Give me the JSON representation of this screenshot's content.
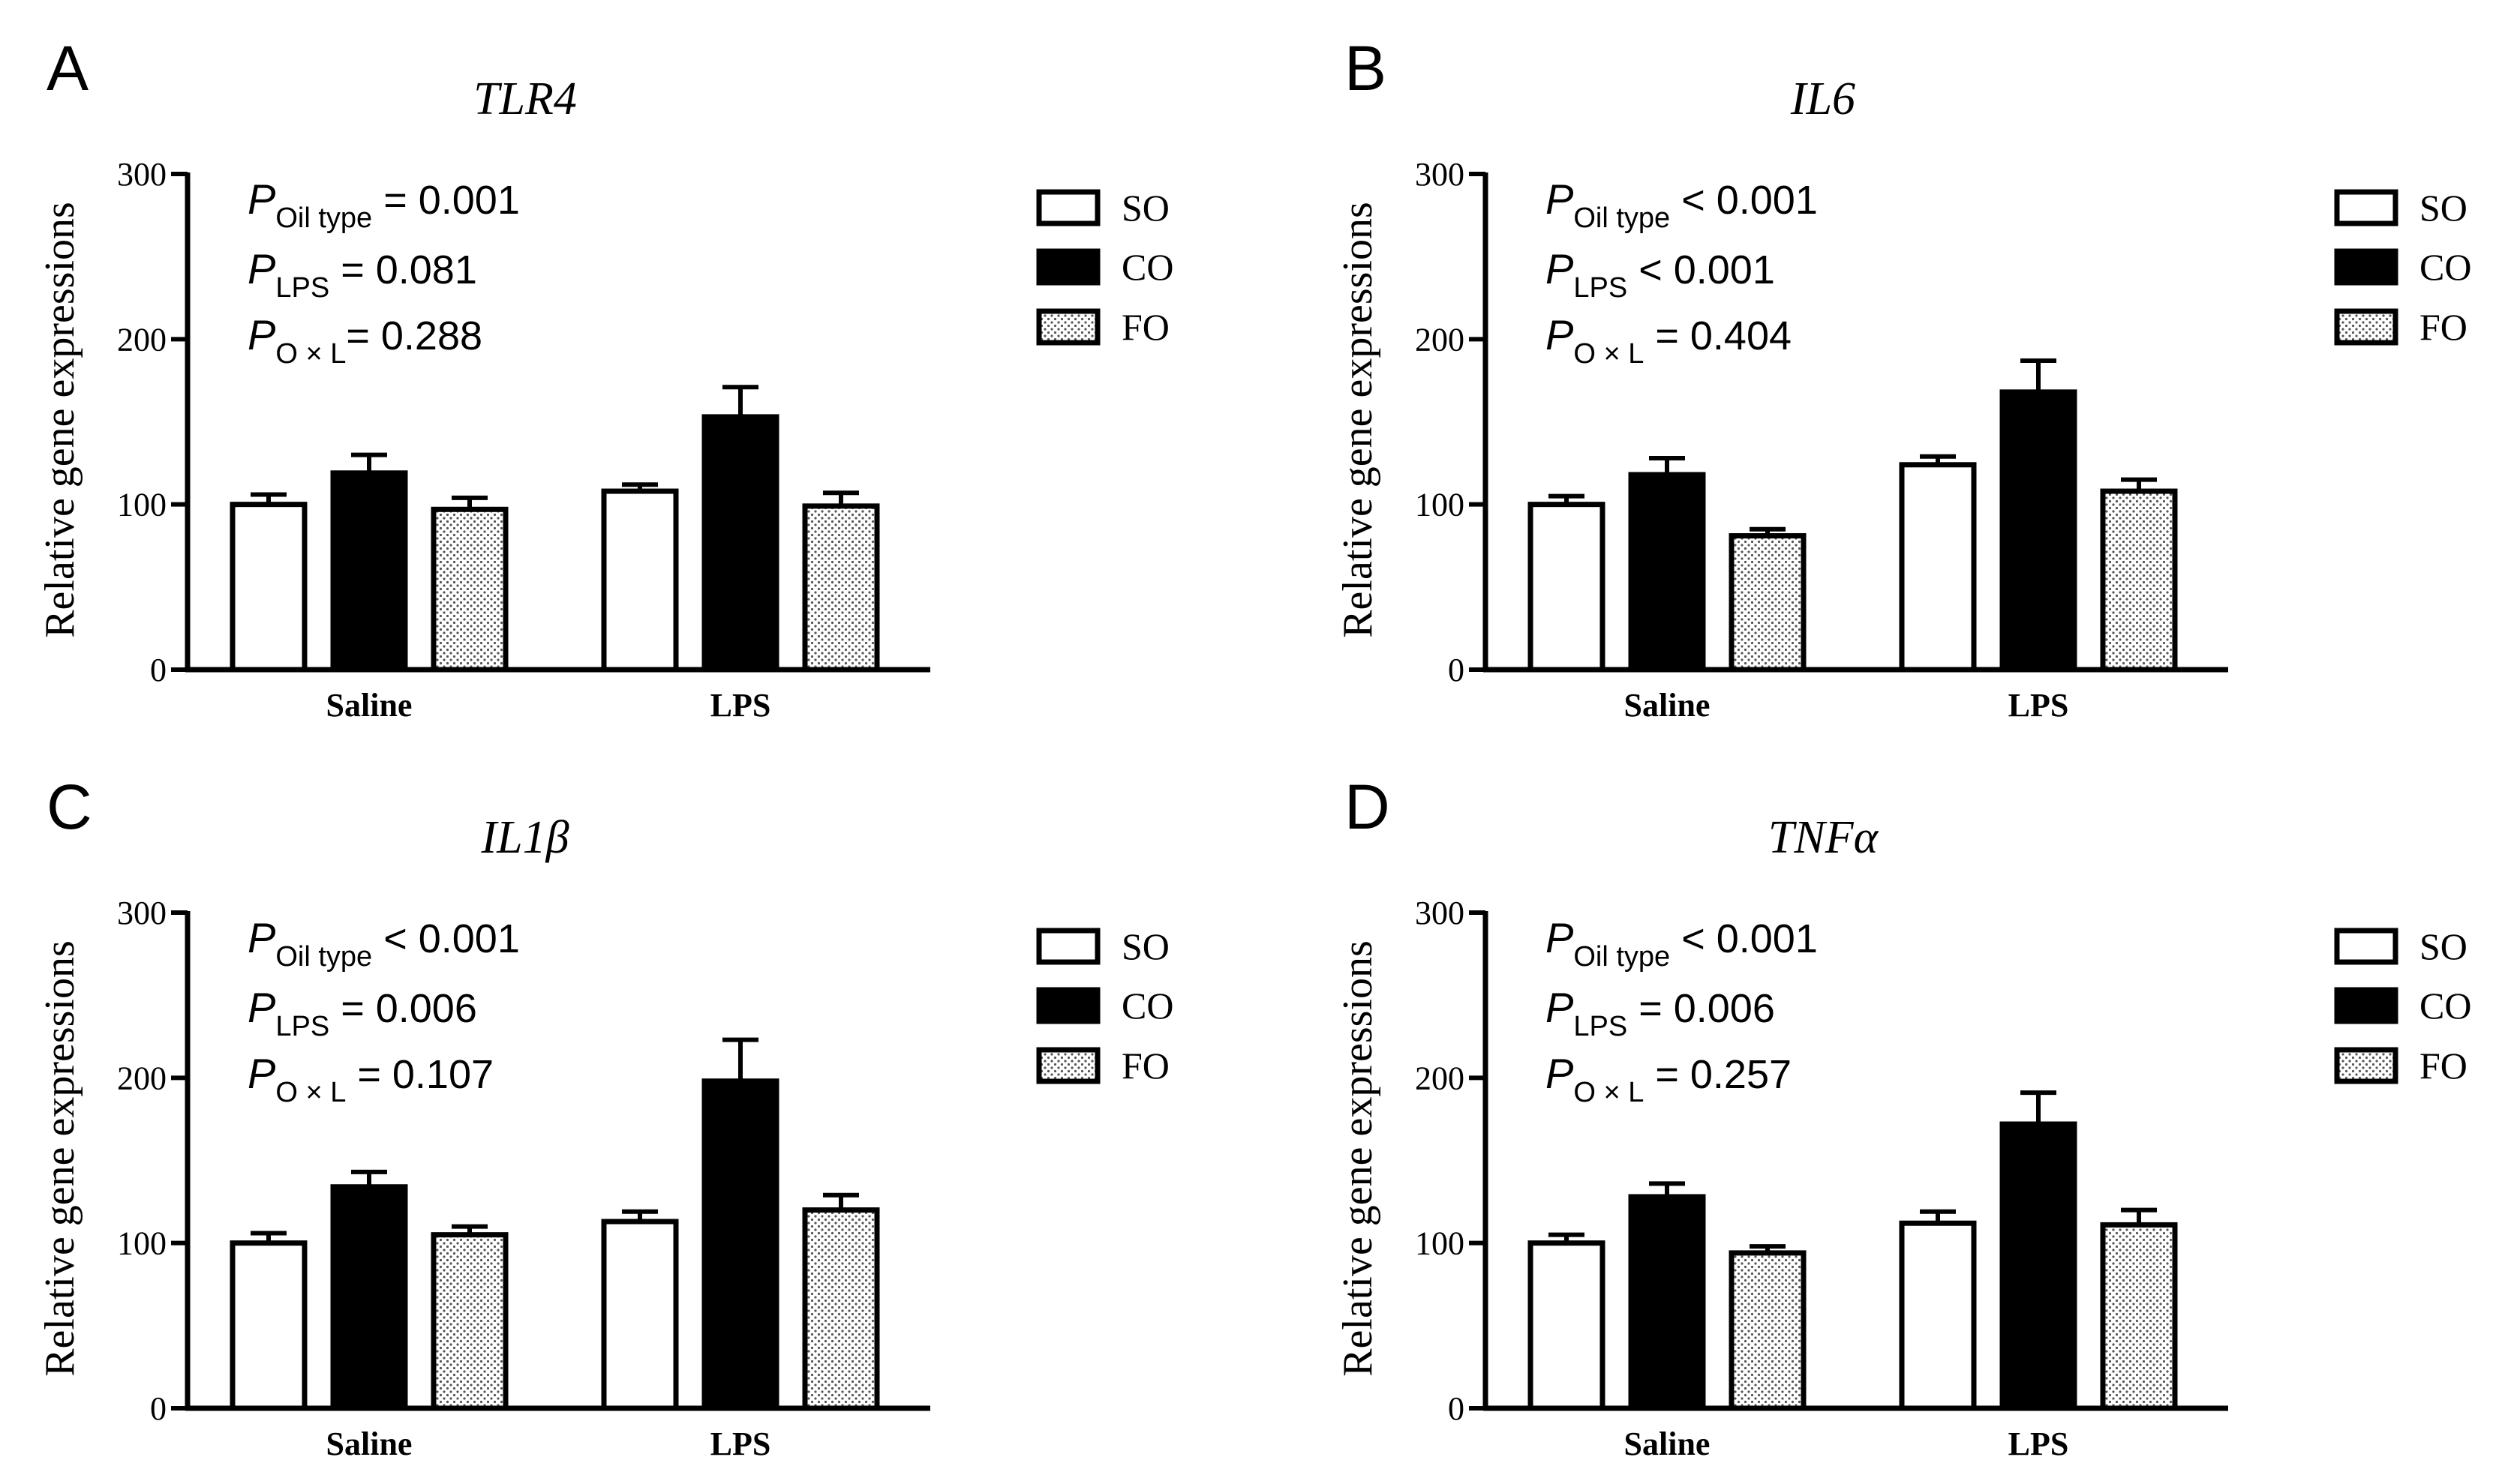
{
  "chart_data": [
    {
      "type": "bar",
      "panel": "A",
      "title": "TLR4",
      "ylabel": "Relative gene expressions",
      "ylim": [
        0,
        300
      ],
      "yticks": [
        0,
        100,
        200,
        300
      ],
      "categories": [
        "Saline",
        "LPS"
      ],
      "series": [
        {
          "name": "SO",
          "values": [
            100,
            108
          ],
          "errors": [
            6,
            4
          ]
        },
        {
          "name": "CO",
          "values": [
            119,
            153
          ],
          "errors": [
            11,
            18
          ]
        },
        {
          "name": "FO",
          "values": [
            97,
            99
          ],
          "errors": [
            7,
            8
          ]
        }
      ],
      "stats": [
        {
          "sub": "Oil type",
          "rel": " = ",
          "val": "0.001"
        },
        {
          "sub": "LPS",
          "rel": " = ",
          "val": "0.081"
        },
        {
          "sub": "O × L",
          "rel": "= ",
          "val": "0.288"
        }
      ]
    },
    {
      "type": "bar",
      "panel": "B",
      "title": "IL6",
      "ylabel": "Relative gene expressions",
      "ylim": [
        0,
        300
      ],
      "yticks": [
        0,
        100,
        200,
        300
      ],
      "categories": [
        "Saline",
        "LPS"
      ],
      "series": [
        {
          "name": "SO",
          "values": [
            100,
            124
          ],
          "errors": [
            5,
            5
          ]
        },
        {
          "name": "CO",
          "values": [
            118,
            168
          ],
          "errors": [
            10,
            19
          ]
        },
        {
          "name": "FO",
          "values": [
            81,
            108
          ],
          "errors": [
            4,
            7
          ]
        }
      ],
      "stats": [
        {
          "sub": "Oil type",
          "rel": " < ",
          "val": "0.001"
        },
        {
          "sub": "LPS",
          "rel": " < ",
          "val": "0.001"
        },
        {
          "sub": "O × L",
          "rel": " = ",
          "val": "0.404"
        }
      ]
    },
    {
      "type": "bar",
      "panel": "C",
      "title": "IL1β",
      "ylabel": "Relative gene expressions",
      "ylim": [
        0,
        300
      ],
      "yticks": [
        0,
        100,
        200,
        300
      ],
      "categories": [
        "Saline",
        "LPS"
      ],
      "series": [
        {
          "name": "SO",
          "values": [
            100,
            113
          ],
          "errors": [
            6,
            6
          ]
        },
        {
          "name": "CO",
          "values": [
            134,
            198
          ],
          "errors": [
            9,
            25
          ]
        },
        {
          "name": "FO",
          "values": [
            105,
            120
          ],
          "errors": [
            5,
            9
          ]
        }
      ],
      "stats": [
        {
          "sub": "Oil type",
          "rel": " < ",
          "val": "0.001"
        },
        {
          "sub": "LPS",
          "rel": " = ",
          "val": "0.006"
        },
        {
          "sub": "O × L",
          "rel": " = ",
          "val": "0.107"
        }
      ]
    },
    {
      "type": "bar",
      "panel": "D",
      "title": "TNFα",
      "ylabel": "Relative gene expressions",
      "ylim": [
        0,
        300
      ],
      "yticks": [
        0,
        100,
        200,
        300
      ],
      "categories": [
        "Saline",
        "LPS"
      ],
      "series": [
        {
          "name": "SO",
          "values": [
            100,
            112
          ],
          "errors": [
            5,
            7
          ]
        },
        {
          "name": "CO",
          "values": [
            128,
            172
          ],
          "errors": [
            8,
            19
          ]
        },
        {
          "name": "FO",
          "values": [
            94,
            111
          ],
          "errors": [
            4,
            9
          ]
        }
      ],
      "stats": [
        {
          "sub": "Oil type",
          "rel": " < ",
          "val": "0.001"
        },
        {
          "sub": "LPS",
          "rel": " = ",
          "val": "0.006"
        },
        {
          "sub": "O × L",
          "rel": " = ",
          "val": "0.257"
        }
      ]
    }
  ],
  "legend": {
    "items": [
      {
        "name": "SO",
        "fill": "white"
      },
      {
        "name": "CO",
        "fill": "black"
      },
      {
        "name": "FO",
        "fill": "dotted"
      }
    ]
  },
  "colors": {
    "so_fill": "#ffffff",
    "co_fill": "#000000",
    "fo_dot": "#555555",
    "fo_bg": "#ffffff",
    "axis": "#000000"
  },
  "p_symbol": "P"
}
